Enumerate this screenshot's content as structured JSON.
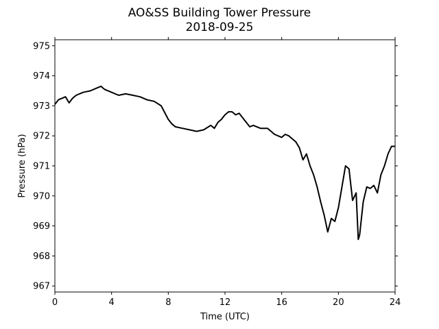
{
  "chart_data": {
    "type": "line",
    "title": "AO&SS Building Tower Pressure",
    "subtitle": "2018-09-25",
    "xlabel": "Time (UTC)",
    "ylabel": "Pressure (hPa)",
    "xlim": [
      0,
      24
    ],
    "ylim": [
      966.8,
      975.2
    ],
    "x_ticks": [
      0,
      4,
      8,
      12,
      16,
      20,
      24
    ],
    "y_ticks": [
      967,
      968,
      969,
      970,
      971,
      972,
      973,
      974,
      975
    ],
    "grid": false,
    "line_color": "#000000",
    "series": [
      {
        "x": [
          0,
          0.25,
          0.5,
          0.75,
          1.0,
          1.25,
          1.5,
          2.0,
          2.5,
          3.0,
          3.25,
          3.5,
          4.0,
          4.5,
          5.0,
          5.5,
          6.0,
          6.5,
          7.0,
          7.5,
          8.0,
          8.25,
          8.5,
          9.0,
          9.5,
          10.0,
          10.5,
          11.0,
          11.25,
          11.5,
          11.75,
          12.0,
          12.25,
          12.5,
          12.75,
          13.0,
          13.25,
          13.5,
          13.75,
          14.0,
          14.5,
          15.0,
          15.5,
          16.0,
          16.25,
          16.5,
          16.75,
          17.0,
          17.25,
          17.5,
          17.75,
          18.0,
          18.25,
          18.5,
          18.75,
          19.0,
          19.25,
          19.5,
          19.75,
          20.0,
          20.25,
          20.5,
          20.75,
          21.0,
          21.25,
          21.4,
          21.5,
          21.75,
          22.0,
          22.25,
          22.5,
          22.75,
          23.0,
          23.25,
          23.5,
          23.75,
          24.0
        ],
        "y": [
          973.05,
          973.2,
          973.25,
          973.3,
          973.1,
          973.25,
          973.35,
          973.45,
          973.5,
          973.6,
          973.65,
          973.55,
          973.45,
          973.35,
          973.4,
          973.35,
          973.3,
          973.2,
          973.15,
          973.0,
          972.55,
          972.4,
          972.3,
          972.25,
          972.2,
          972.15,
          972.2,
          972.35,
          972.25,
          972.45,
          972.55,
          972.7,
          972.8,
          972.8,
          972.7,
          972.75,
          972.6,
          972.45,
          972.3,
          972.35,
          972.25,
          972.25,
          972.05,
          971.95,
          972.05,
          972.0,
          971.9,
          971.8,
          971.6,
          971.2,
          971.4,
          971.0,
          970.7,
          970.3,
          969.8,
          969.35,
          968.8,
          969.25,
          969.15,
          969.6,
          970.3,
          971.0,
          970.9,
          969.85,
          970.1,
          968.55,
          968.7,
          969.8,
          970.3,
          970.25,
          970.35,
          970.1,
          970.7,
          971.0,
          971.4,
          971.65,
          971.65
        ]
      }
    ]
  }
}
